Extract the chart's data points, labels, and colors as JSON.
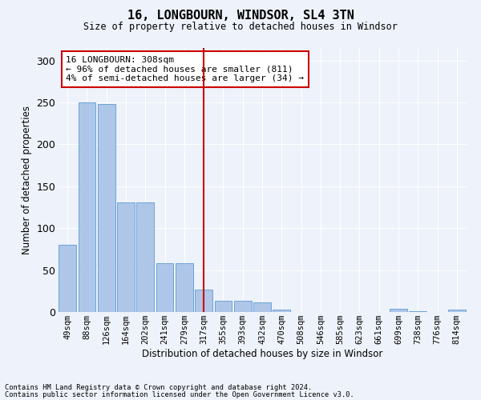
{
  "title1": "16, LONGBOURN, WINDSOR, SL4 3TN",
  "title2": "Size of property relative to detached houses in Windsor",
  "xlabel": "Distribution of detached houses by size in Windsor",
  "ylabel": "Number of detached properties",
  "footnote1": "Contains HM Land Registry data © Crown copyright and database right 2024.",
  "footnote2": "Contains public sector information licensed under the Open Government Licence v3.0.",
  "annotation_title": "16 LONGBOURN: 308sqm",
  "annotation_line1": "← 96% of detached houses are smaller (811)",
  "annotation_line2": "4% of semi-detached houses are larger (34) →",
  "categories": [
    "49sqm",
    "88sqm",
    "126sqm",
    "164sqm",
    "202sqm",
    "241sqm",
    "279sqm",
    "317sqm",
    "355sqm",
    "393sqm",
    "432sqm",
    "470sqm",
    "508sqm",
    "546sqm",
    "585sqm",
    "623sqm",
    "661sqm",
    "699sqm",
    "738sqm",
    "776sqm",
    "814sqm"
  ],
  "values": [
    80,
    250,
    248,
    131,
    131,
    58,
    58,
    27,
    13,
    13,
    11,
    3,
    0,
    0,
    0,
    0,
    0,
    4,
    1,
    0,
    3
  ],
  "bar_color": "#aec6e8",
  "bar_edge_color": "#5b9bd5",
  "vline_color": "#cc0000",
  "vline_pos": 7,
  "annotation_box_color": "#cc0000",
  "background_color": "#eef2fa",
  "grid_color": "#ffffff",
  "ylim": [
    0,
    315
  ],
  "yticks": [
    0,
    50,
    100,
    150,
    200,
    250,
    300
  ]
}
